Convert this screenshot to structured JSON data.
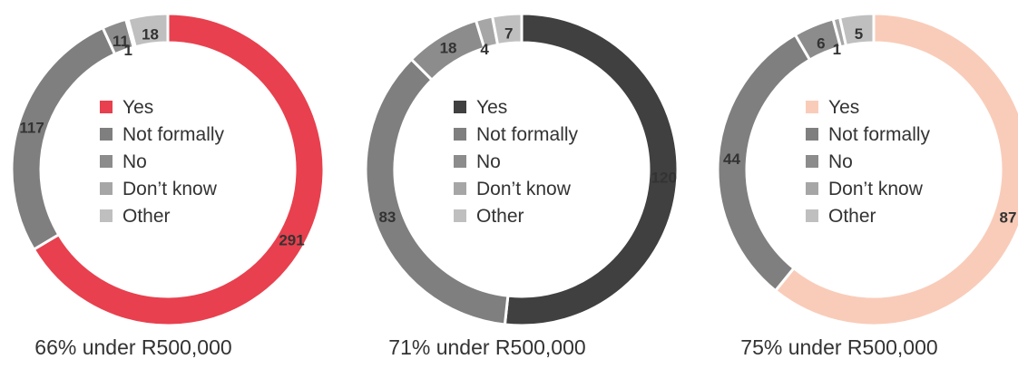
{
  "legend_labels": [
    "Yes",
    "Not formally",
    "No",
    "Don’t know",
    "Other"
  ],
  "chart_data": [
    {
      "type": "donut",
      "caption": "66% under R500,000",
      "categories": [
        "Yes",
        "Not formally",
        "No",
        "Don’t know",
        "Other"
      ],
      "values": [
        291,
        117,
        11,
        1,
        18
      ],
      "colors": [
        "#e8404e",
        "#7f7f7f",
        "#8c8c8c",
        "#a6a6a6",
        "#bfbfbf"
      ]
    },
    {
      "type": "donut",
      "caption": "71% under R500,000",
      "categories": [
        "Yes",
        "Not formally",
        "No",
        "Don’t know",
        "Other"
      ],
      "values": [
        120,
        83,
        18,
        4,
        7
      ],
      "colors": [
        "#404040",
        "#7f7f7f",
        "#8c8c8c",
        "#a6a6a6",
        "#bfbfbf"
      ]
    },
    {
      "type": "donut",
      "caption": "75% under R500,000",
      "categories": [
        "Yes",
        "Not formally",
        "No",
        "Don’t know",
        "Other"
      ],
      "values": [
        87,
        44,
        6,
        1,
        5
      ],
      "colors": [
        "#f9ccb9",
        "#7f7f7f",
        "#8c8c8c",
        "#a6a6a6",
        "#bfbfbf"
      ]
    }
  ]
}
